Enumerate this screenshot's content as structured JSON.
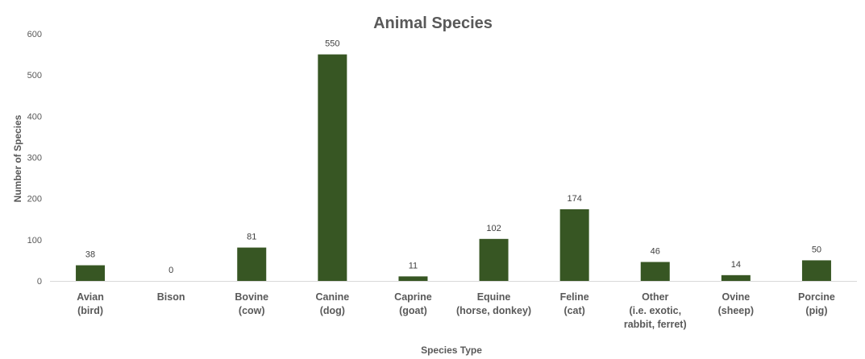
{
  "chart_data": {
    "type": "bar",
    "title": "Animal Species",
    "xlabel": "Species Type",
    "ylabel": "Number of Species",
    "ylim": [
      0,
      600
    ],
    "yticks": [
      0,
      100,
      200,
      300,
      400,
      500,
      600
    ],
    "grid": false,
    "legend": "none",
    "bar_color": "#375623",
    "categories": [
      [
        "Avian",
        "(bird)"
      ],
      [
        "Bison"
      ],
      [
        "Bovine",
        "(cow)"
      ],
      [
        "Canine",
        "(dog)"
      ],
      [
        "Caprine",
        "(goat)"
      ],
      [
        "Equine",
        "(horse, donkey)"
      ],
      [
        "Feline",
        "(cat)"
      ],
      [
        "Other",
        "(i.e. exotic,",
        "rabbit, ferret)"
      ],
      [
        "Ovine",
        "(sheep)"
      ],
      [
        "Porcine",
        "(pig)"
      ]
    ],
    "values": [
      38,
      0,
      81,
      550,
      11,
      102,
      174,
      46,
      14,
      50
    ]
  }
}
